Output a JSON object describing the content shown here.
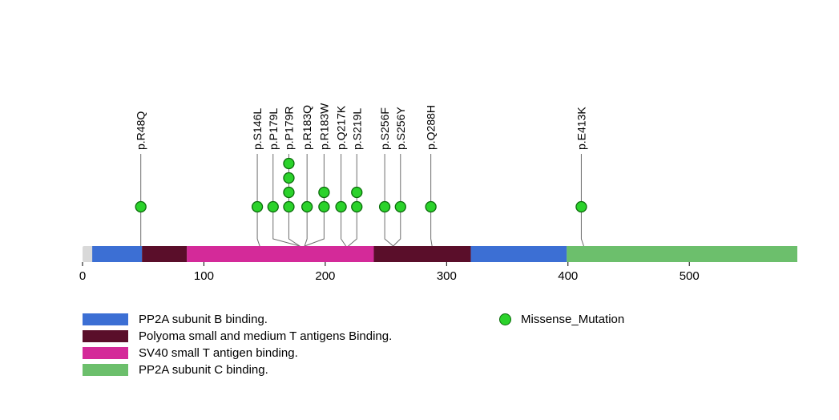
{
  "chart_data": {
    "type": "lollipop",
    "title": "",
    "protein_length": 589,
    "xlim": [
      0,
      589
    ],
    "x_ticks": [
      0,
      100,
      200,
      300,
      400,
      500
    ],
    "mutation_type": "Missense_Mutation",
    "mutation_color": "#2bd22b",
    "backbone_color": "#d9d9d9",
    "mutations": [
      {
        "label": "p.R48Q",
        "position": 48,
        "count": 1,
        "label_position": 48
      },
      {
        "label": "p.S146L",
        "position": 146,
        "count": 1,
        "label_position": 144
      },
      {
        "label": "p.P179L",
        "position": 179,
        "count": 1,
        "label_position": 157
      },
      {
        "label": "p.P179R",
        "position": 179,
        "count": 4,
        "label_position": 170
      },
      {
        "label": "p.R183Q",
        "position": 183,
        "count": 1,
        "label_position": 185
      },
      {
        "label": "p.R183W",
        "position": 183,
        "count": 2,
        "label_position": 199
      },
      {
        "label": "p.Q217K",
        "position": 217,
        "count": 1,
        "label_position": 213
      },
      {
        "label": "p.S219L",
        "position": 219,
        "count": 2,
        "label_position": 226
      },
      {
        "label": "p.S256F",
        "position": 256,
        "count": 1,
        "label_position": 249
      },
      {
        "label": "p.S256Y",
        "position": 256,
        "count": 1,
        "label_position": 262
      },
      {
        "label": "p.Q288H",
        "position": 288,
        "count": 1,
        "label_position": 287
      },
      {
        "label": "p.E413K",
        "position": 413,
        "count": 1,
        "label_position": 411
      }
    ],
    "domains": [
      {
        "name": "PP2A subunit B binding.",
        "color": "#3c6fd4",
        "start": 8,
        "end": 49
      },
      {
        "name": "Polyoma small and medium T antigens Binding.",
        "color": "#5a0e2a",
        "start": 49,
        "end": 86
      },
      {
        "name": "SV40 small T antigen binding.",
        "color": "#d42a99",
        "start": 86,
        "end": 240
      },
      {
        "name": "Polyoma small and medium T antigens Binding.",
        "color": "#5a0e2a",
        "start": 240,
        "end": 320
      },
      {
        "name": "PP2A subunit B binding.",
        "color": "#3c6fd4",
        "start": 320,
        "end": 399
      },
      {
        "name": "PP2A subunit C binding.",
        "color": "#6cbf6c",
        "start": 399,
        "end": 589
      }
    ]
  },
  "legend": {
    "domains": [
      {
        "label": "PP2A subunit B binding.",
        "color": "#3c6fd4"
      },
      {
        "label": "Polyoma small and medium T antigens Binding.",
        "color": "#5a0e2a"
      },
      {
        "label": "SV40 small T antigen binding.",
        "color": "#d42a99"
      },
      {
        "label": "PP2A subunit C binding.",
        "color": "#6cbf6c"
      }
    ],
    "missense": {
      "label": "Missense_Mutation",
      "color": "#2bd22b"
    }
  }
}
